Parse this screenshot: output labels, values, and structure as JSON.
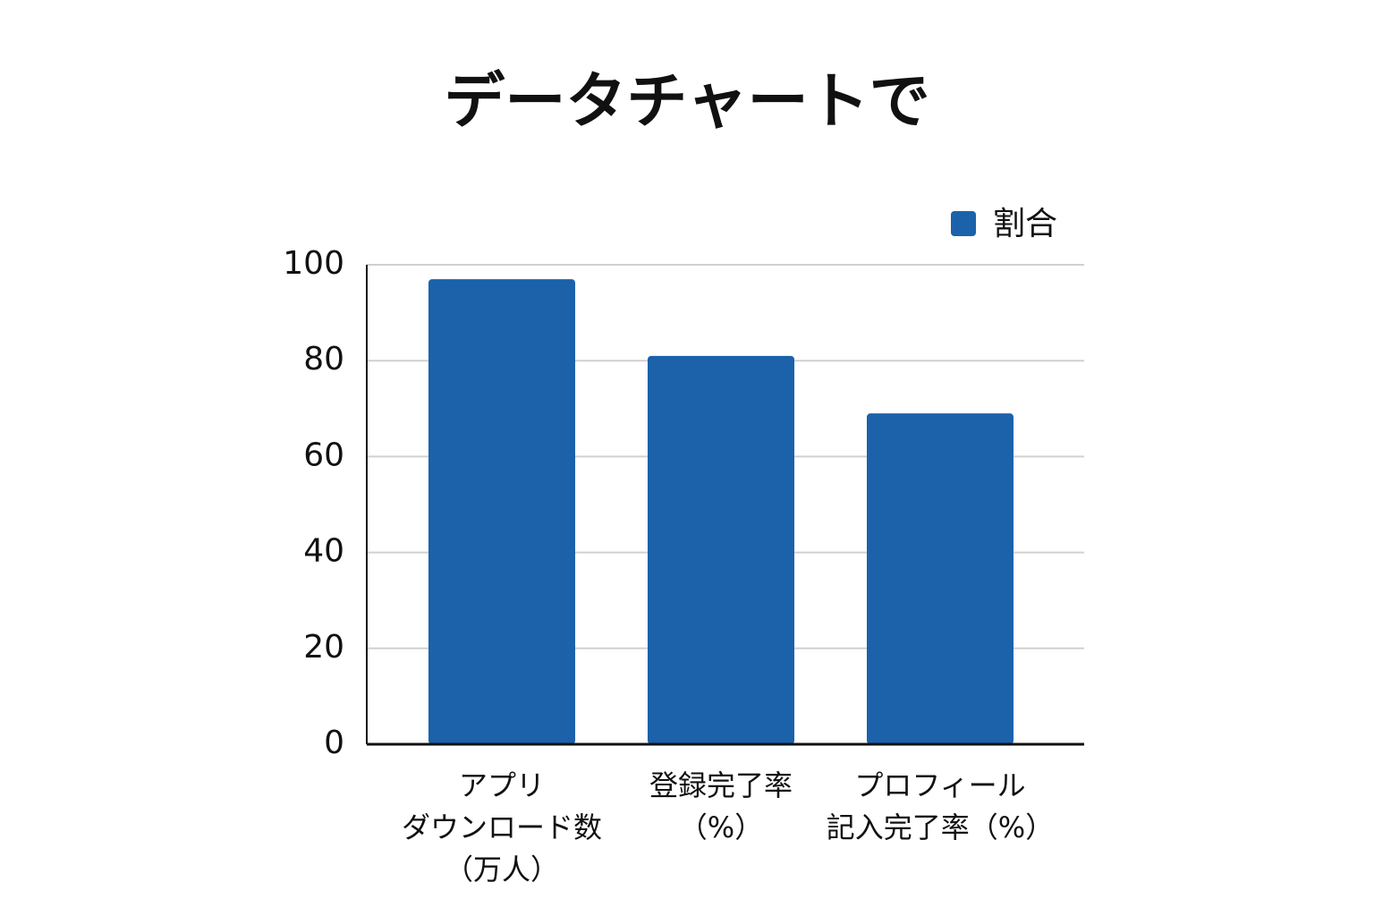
{
  "chart_data": {
    "type": "bar",
    "title": "データチャートで",
    "categories": [
      [
        "アプリ",
        "ダウンロード数",
        "（万人）"
      ],
      [
        "登録完了率",
        "（%）"
      ],
      [
        "プロフィール",
        "記入完了率（%）"
      ]
    ],
    "series": [
      {
        "name": "割合",
        "color": "#1b62ab",
        "values": [
          97,
          81,
          69
        ]
      }
    ],
    "ylim": [
      0,
      100
    ],
    "yticks": [
      0,
      20,
      40,
      60,
      80,
      100
    ],
    "grid": true,
    "legend": "top-right"
  }
}
